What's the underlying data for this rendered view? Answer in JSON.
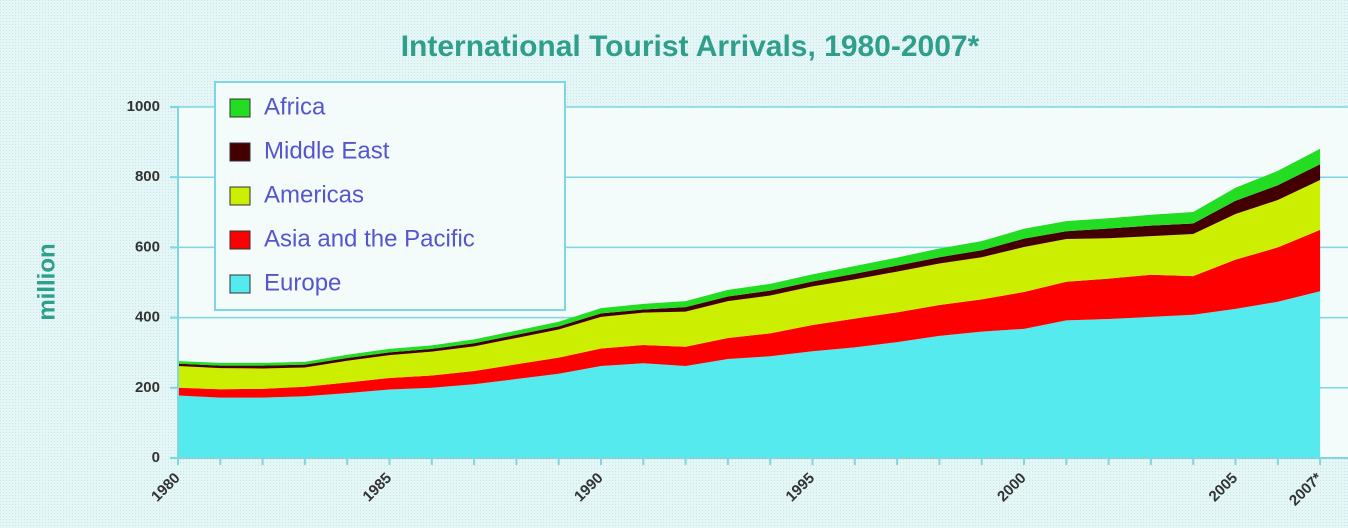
{
  "chart_data": {
    "type": "stacked_area",
    "title": "International Tourist Arrivals, 1980-2007*",
    "y_label": "million",
    "categories": [
      "1980",
      null,
      null,
      null,
      null,
      "1985",
      null,
      null,
      null,
      null,
      "1990",
      null,
      null,
      null,
      null,
      "1995",
      null,
      null,
      null,
      null,
      "2000",
      null,
      null,
      null,
      null,
      "2005",
      null,
      "2007*"
    ],
    "series": [
      {
        "name": "Europe",
        "color": "#55eaee",
        "values": [
          178,
          172,
          172,
          176,
          185,
          195,
          200,
          210,
          225,
          240,
          262,
          270,
          262,
          282,
          290,
          304,
          315,
          330,
          348,
          360,
          368,
          392,
          396,
          402,
          408,
          425,
          445,
          475
        ]
      },
      {
        "name": "Asia and the Pacific",
        "color": "#ff0000",
        "values": [
          22,
          24,
          25,
          27,
          30,
          33,
          35,
          38,
          42,
          46,
          50,
          52,
          55,
          60,
          65,
          75,
          82,
          85,
          88,
          92,
          105,
          110,
          115,
          120,
          110,
          140,
          155,
          175
        ]
      },
      {
        "name": "Americas",
        "color": "#ccee00",
        "values": [
          62,
          60,
          58,
          55,
          62,
          65,
          68,
          70,
          75,
          80,
          90,
          92,
          100,
          105,
          108,
          110,
          112,
          116,
          118,
          120,
          128,
          122,
          115,
          110,
          120,
          130,
          135,
          142
        ]
      },
      {
        "name": "Middle East",
        "color": "#440000",
        "values": [
          7,
          7,
          8,
          8,
          8,
          8,
          8,
          9,
          9,
          9,
          10,
          9,
          13,
          13,
          14,
          14,
          16,
          17,
          18,
          20,
          24,
          22,
          28,
          30,
          30,
          38,
          42,
          45
        ]
      },
      {
        "name": "Africa",
        "color": "#22dd22",
        "values": [
          7,
          8,
          8,
          8,
          9,
          10,
          10,
          11,
          12,
          13,
          15,
          16,
          17,
          19,
          19,
          20,
          22,
          23,
          25,
          26,
          28,
          29,
          29,
          31,
          33,
          37,
          41,
          44
        ]
      }
    ],
    "ylim": [
      0,
      1000
    ],
    "yticks": [
      0,
      200,
      400,
      600,
      800,
      1000
    ],
    "grid": true,
    "legend": "upper left"
  }
}
